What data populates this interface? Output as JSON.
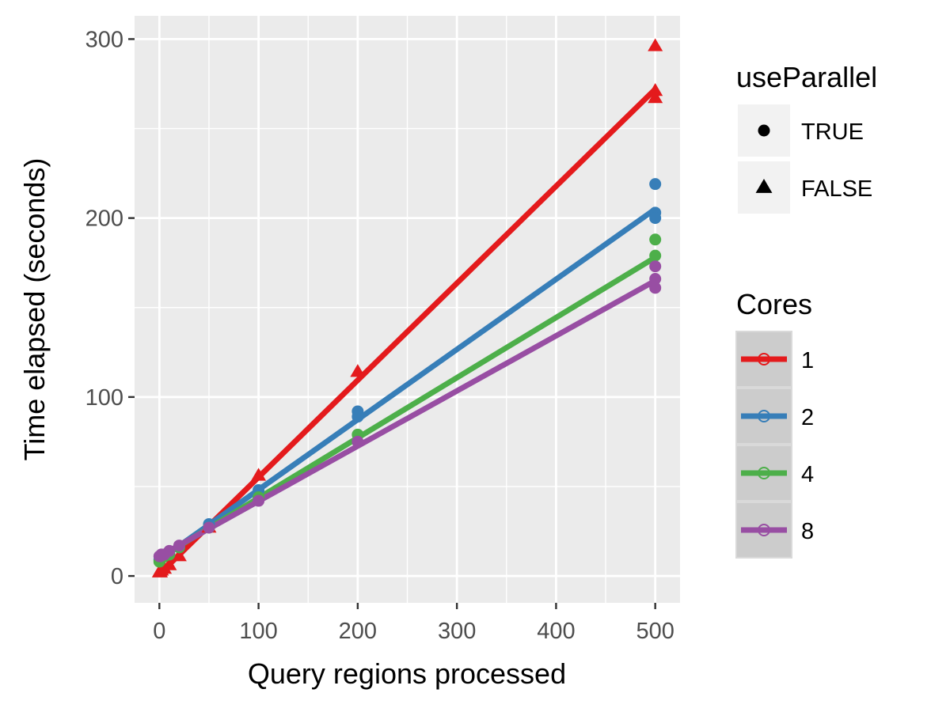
{
  "chart_data": {
    "type": "scatter",
    "xlabel": "Query regions processed",
    "ylabel": "Time elapsed (seconds)",
    "xlim": [
      -25,
      525
    ],
    "ylim": [
      -15,
      313
    ],
    "x_ticks": [
      "0",
      "100",
      "200",
      "300",
      "400",
      "500"
    ],
    "y_ticks": [
      "0",
      "100",
      "200",
      "300"
    ],
    "grid": true,
    "background": "#ebebeb",
    "legend_position": "right",
    "legends": [
      {
        "title": "useParallel",
        "entries": [
          {
            "label": "TRUE",
            "shape": "circle"
          },
          {
            "label": "FALSE",
            "shape": "triangle"
          }
        ]
      },
      {
        "title": "Cores",
        "entries": [
          {
            "label": "1",
            "color": "#e41a1c"
          },
          {
            "label": "2",
            "color": "#377eb8"
          },
          {
            "label": "4",
            "color": "#4daf4a"
          },
          {
            "label": "8",
            "color": "#984ea3"
          }
        ]
      }
    ],
    "series": [
      {
        "name": "1",
        "color": "#e41a1c",
        "shape": "triangle",
        "fit": [
          [
            0,
            1
          ],
          [
            500,
            272
          ]
        ],
        "points": [
          [
            0,
            2
          ],
          [
            1,
            2
          ],
          [
            2,
            3
          ],
          [
            5,
            4
          ],
          [
            10,
            6
          ],
          [
            20,
            11
          ],
          [
            50,
            27
          ],
          [
            100,
            56
          ],
          [
            200,
            114
          ],
          [
            500,
            296
          ],
          [
            500,
            271
          ],
          [
            500,
            267
          ]
        ]
      },
      {
        "name": "2",
        "color": "#377eb8",
        "shape": "circle",
        "fit": [
          [
            0,
            9
          ],
          [
            500,
            205
          ]
        ],
        "points": [
          [
            0,
            9
          ],
          [
            1,
            10
          ],
          [
            2,
            10
          ],
          [
            5,
            11
          ],
          [
            10,
            12
          ],
          [
            20,
            16
          ],
          [
            50,
            29
          ],
          [
            100,
            48
          ],
          [
            200,
            92
          ],
          [
            200,
            89
          ],
          [
            500,
            219
          ],
          [
            500,
            203
          ],
          [
            500,
            200
          ]
        ]
      },
      {
        "name": "4",
        "color": "#4daf4a",
        "shape": "circle",
        "fit": [
          [
            0,
            10
          ],
          [
            500,
            178
          ]
        ],
        "points": [
          [
            0,
            8
          ],
          [
            1,
            9
          ],
          [
            2,
            10
          ],
          [
            5,
            11
          ],
          [
            10,
            12
          ],
          [
            20,
            16
          ],
          [
            50,
            27
          ],
          [
            100,
            44
          ],
          [
            200,
            79
          ],
          [
            500,
            188
          ],
          [
            500,
            179
          ]
        ]
      },
      {
        "name": "8",
        "color": "#984ea3",
        "shape": "circle",
        "fit": [
          [
            0,
            11
          ],
          [
            500,
            165
          ]
        ],
        "points": [
          [
            0,
            11
          ],
          [
            1,
            11
          ],
          [
            2,
            12
          ],
          [
            5,
            12
          ],
          [
            10,
            14
          ],
          [
            20,
            17
          ],
          [
            50,
            27
          ],
          [
            100,
            42
          ],
          [
            200,
            75
          ],
          [
            500,
            173
          ],
          [
            500,
            166
          ],
          [
            500,
            161
          ]
        ]
      }
    ]
  }
}
